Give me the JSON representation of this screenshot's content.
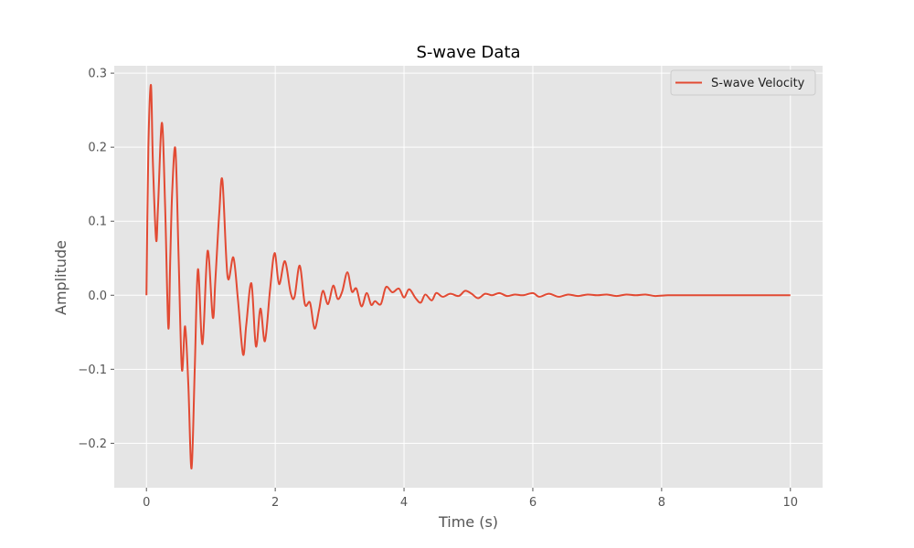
{
  "chart_data": {
    "type": "line",
    "title": "S-wave Data",
    "xlabel": "Time (s)",
    "ylabel": "Amplitude",
    "xlim": [
      -0.5,
      10.5
    ],
    "ylim": [
      -0.26,
      0.31
    ],
    "xticks": [
      0,
      2,
      4,
      6,
      8,
      10
    ],
    "xtick_labels": [
      "0",
      "2",
      "4",
      "6",
      "8",
      "10"
    ],
    "yticks": [
      -0.2,
      -0.1,
      0.0,
      0.1,
      0.2,
      0.3
    ],
    "ytick_labels": [
      "−0.2",
      "−0.1",
      "0.0",
      "0.1",
      "0.2",
      "0.3"
    ],
    "grid": true,
    "legend_position": "top-right",
    "series": [
      {
        "name": "S-wave Velocity",
        "color": "#E24A33",
        "x": [
          0,
          0.03,
          0.07,
          0.1,
          0.15,
          0.18,
          0.24,
          0.29,
          0.34,
          0.37,
          0.4,
          0.45,
          0.5,
          0.55,
          0.6,
          0.65,
          0.7,
          0.75,
          0.8,
          0.87,
          0.95,
          1.03,
          1.07,
          1.13,
          1.18,
          1.26,
          1.35,
          1.42,
          1.5,
          1.55,
          1.63,
          1.7,
          1.77,
          1.84,
          1.92,
          1.99,
          2.06,
          2.15,
          2.24,
          2.3,
          2.38,
          2.46,
          2.54,
          2.61,
          2.68,
          2.74,
          2.82,
          2.9,
          2.97,
          3.04,
          3.12,
          3.19,
          3.26,
          3.34,
          3.42,
          3.49,
          3.55,
          3.64,
          3.72,
          3.82,
          3.92,
          4.0,
          4.08,
          4.18,
          4.26,
          4.33,
          4.43,
          4.5,
          4.6,
          4.72,
          4.85,
          4.95,
          5.05,
          5.15,
          5.26,
          5.37,
          5.48,
          5.6,
          5.72,
          5.85,
          6.0,
          6.1,
          6.25,
          6.4,
          6.55,
          6.7,
          6.85,
          7.0,
          7.15,
          7.3,
          7.45,
          7.6,
          7.75,
          7.9,
          8.1,
          8.3,
          8.5,
          8.8,
          9.0,
          9.3,
          9.6,
          10.0
        ],
        "y": [
          0.0,
          0.2,
          0.284,
          0.18,
          0.075,
          0.12,
          0.233,
          0.12,
          -0.044,
          0.05,
          0.14,
          0.197,
          0.05,
          -0.1,
          -0.042,
          -0.12,
          -0.234,
          -0.1,
          0.035,
          -0.066,
          0.06,
          -0.03,
          0.02,
          0.11,
          0.155,
          0.025,
          0.051,
          -0.005,
          -0.08,
          -0.04,
          0.016,
          -0.069,
          -0.018,
          -0.062,
          0.008,
          0.057,
          0.015,
          0.046,
          0.003,
          -0.002,
          0.04,
          -0.012,
          -0.01,
          -0.045,
          -0.02,
          0.006,
          -0.012,
          0.013,
          -0.005,
          0.005,
          0.031,
          0.005,
          0.009,
          -0.015,
          0.003,
          -0.013,
          -0.008,
          -0.012,
          0.011,
          0.004,
          0.009,
          -0.003,
          0.008,
          -0.004,
          -0.01,
          0.001,
          -0.007,
          0.003,
          -0.002,
          0.002,
          -0.001,
          0.006,
          0.002,
          -0.004,
          0.002,
          0.0,
          0.003,
          -0.001,
          0.001,
          0.0,
          0.003,
          -0.002,
          0.002,
          -0.002,
          0.001,
          -0.001,
          0.001,
          0.0,
          0.001,
          -0.001,
          0.001,
          0.0,
          0.001,
          -0.001,
          0.0,
          0.0,
          0.0,
          0.0,
          0.0,
          0.0,
          0.0,
          0.0
        ]
      }
    ]
  }
}
